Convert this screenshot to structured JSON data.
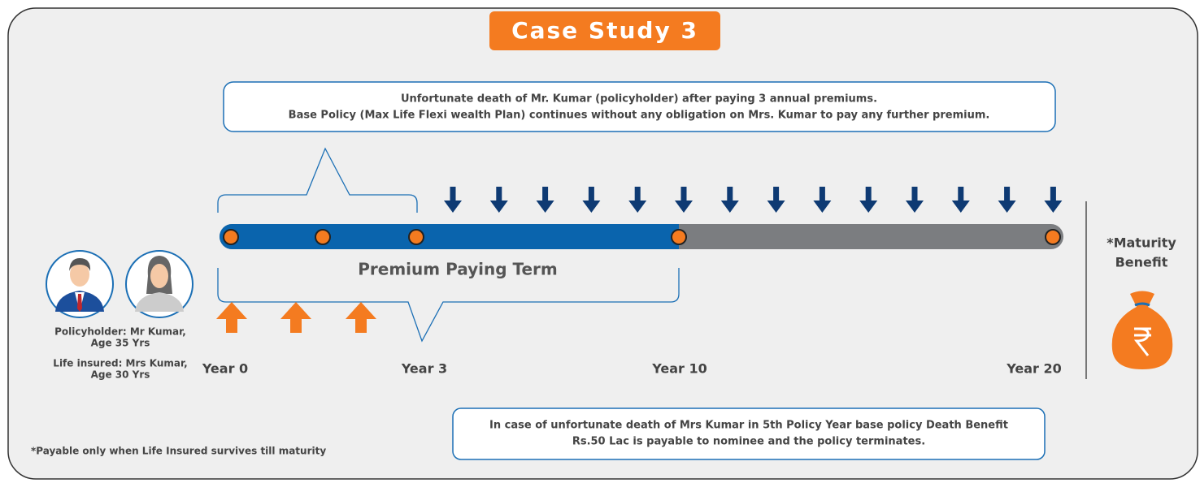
{
  "title": "Case Study 3",
  "top_note": {
    "lines": [
      "Unfortunate death of Mr. Kumar (policyholder) after paying 3 annual premiums.",
      "Base Policy (Max Life Flexi wealth Plan) continues without any obligation on Mrs. Kumar to pay any further premium."
    ]
  },
  "term_label": "Premium Paying Term",
  "maturity": {
    "lines": [
      "*Maturity",
      "Benefit"
    ]
  },
  "people": {
    "lines": [
      "Policyholder: Mr Kumar,",
      "Age 35 Yrs",
      "Life insured: Mrs Kumar,",
      "Age 30 Yrs"
    ]
  },
  "years": [
    "Year 0",
    "Year 3",
    "Year 10",
    "Year 20"
  ],
  "bottom_note": {
    "lines": [
      "In case of unfortunate death of Mrs Kumar in 5th Policy Year base policy Death Benefit",
      "Rs.50 Lac is payable to nominee and the policy terminates."
    ]
  },
  "footnote": "*Payable only when Life Insured survives till maturity"
}
